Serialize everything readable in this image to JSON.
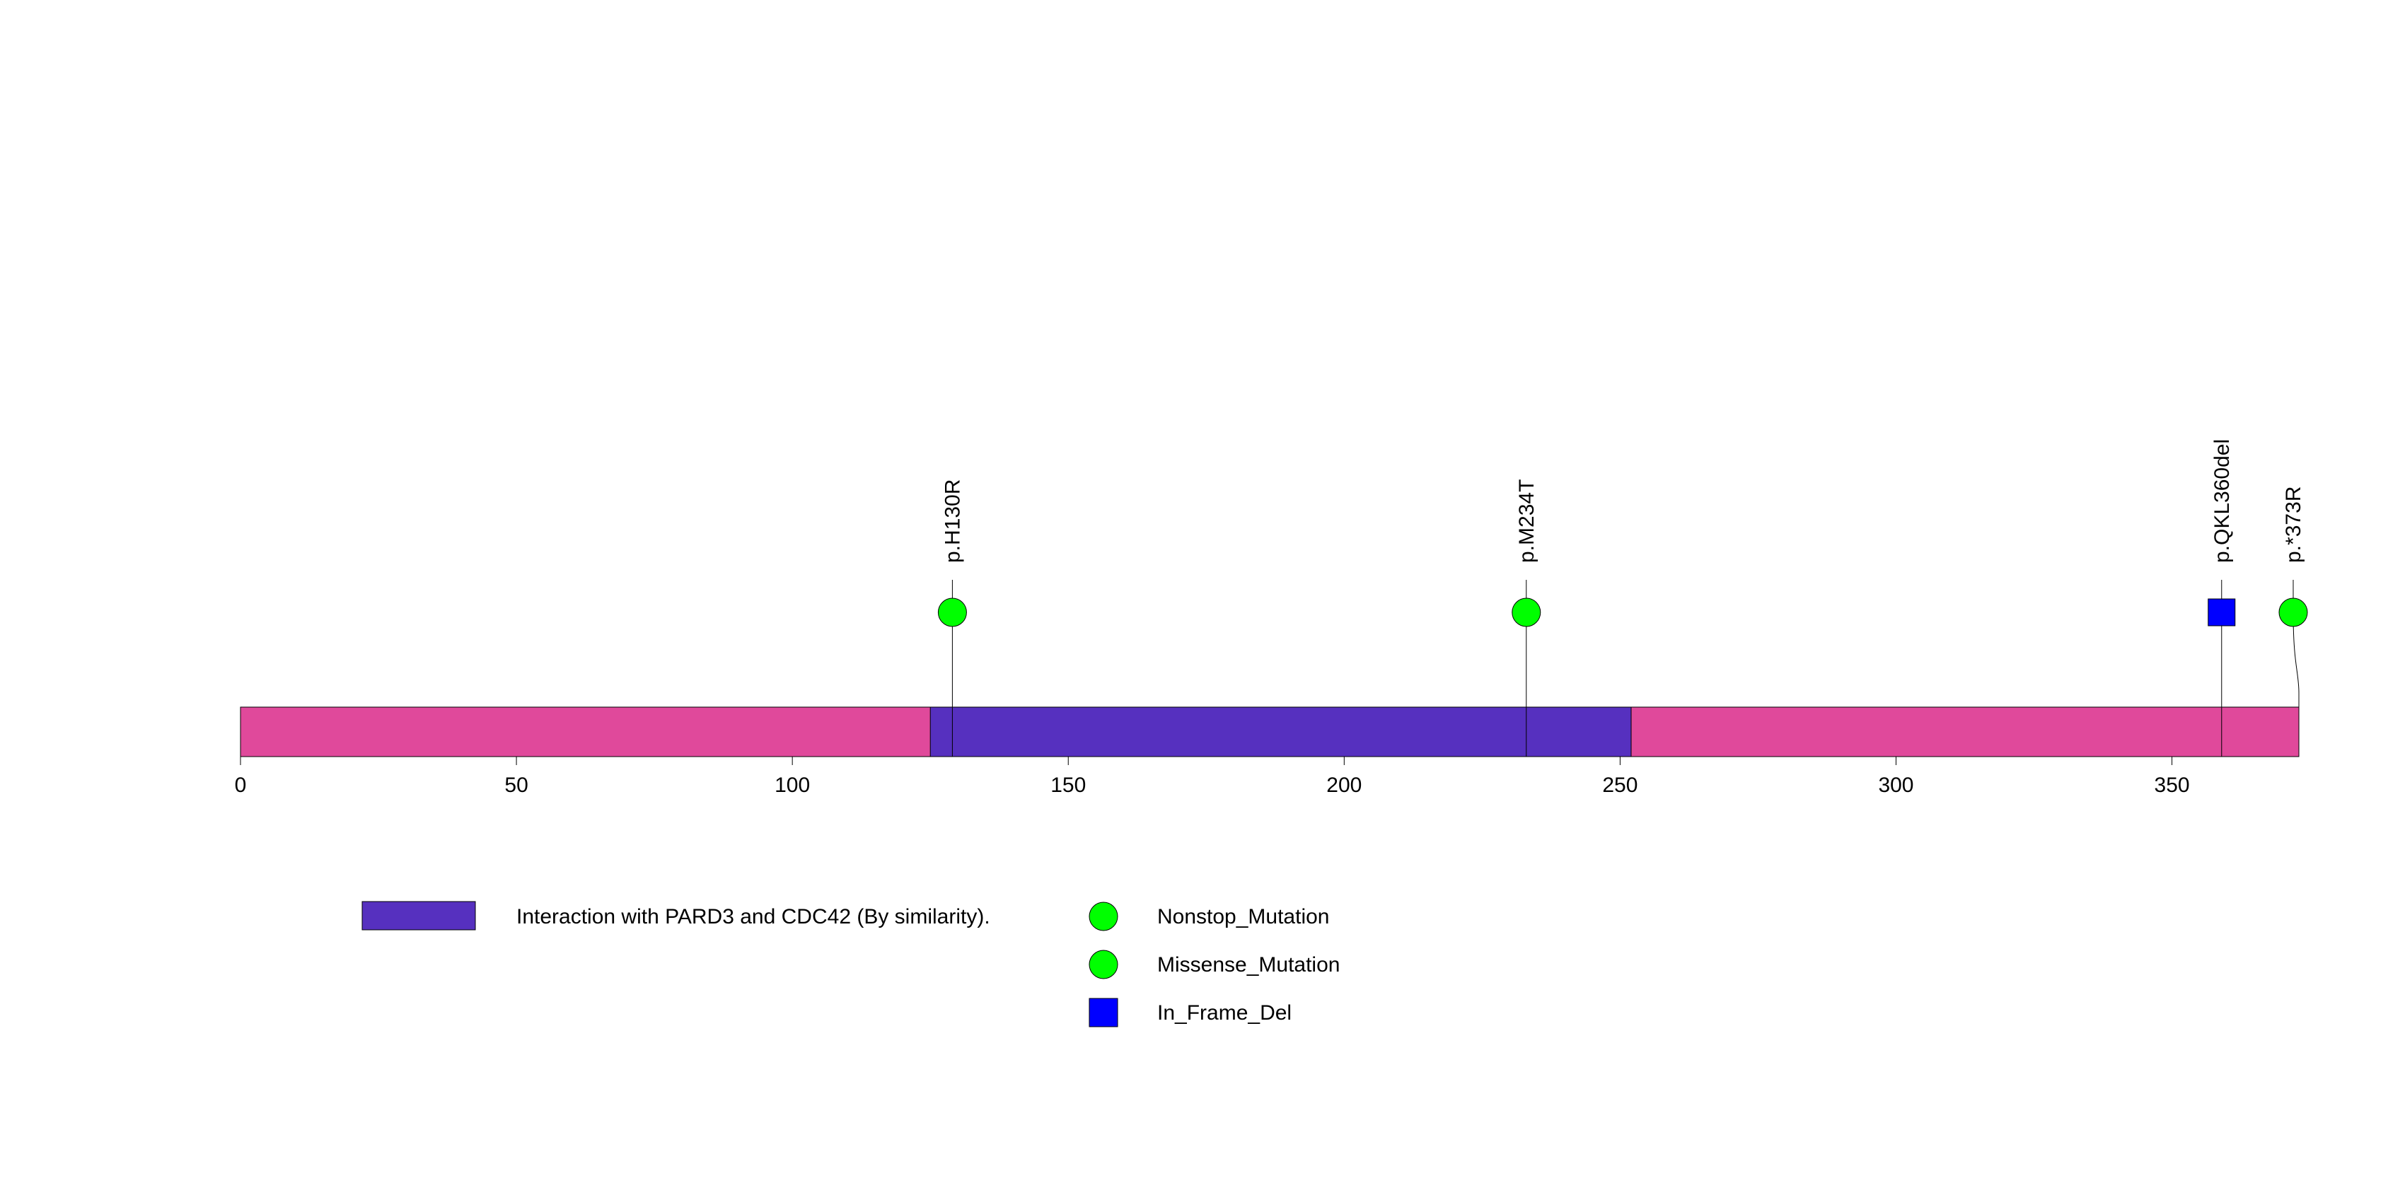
{
  "chart_data": {
    "type": "lollipop",
    "protein_length": 373,
    "xlim": [
      0,
      373
    ],
    "x_ticks": [
      0,
      50,
      100,
      150,
      200,
      250,
      300,
      350
    ],
    "x_tick_labels": [
      "0",
      "50",
      "100",
      "150",
      "200",
      "250",
      "300",
      "350"
    ],
    "backbone_color": "#E0499B",
    "domains": [
      {
        "label": "Interaction with PARD3 and CDC42 (By similarity).",
        "start": 125,
        "end": 252,
        "color": "#5630BF"
      }
    ],
    "mutations": [
      {
        "label": "p.H130R",
        "position": 129,
        "type": "Missense_Mutation",
        "shape": "circle",
        "color": "#00FF00"
      },
      {
        "label": "p.M234T",
        "position": 233,
        "type": "Missense_Mutation",
        "shape": "circle",
        "color": "#00FF00"
      },
      {
        "label": "p.QKL360del",
        "position": 359,
        "type": "In_Frame_Del",
        "shape": "square",
        "color": "#0000FF"
      },
      {
        "label": "p.*373R",
        "position": 373,
        "type": "Nonstop_Mutation",
        "shape": "circle",
        "color": "#00FF00"
      }
    ],
    "legend": {
      "placement": "bottom",
      "domain_entries": [
        {
          "label": "Interaction with PARD3 and CDC42 (By similarity).",
          "color": "#5630BF"
        }
      ],
      "mutation_entries": [
        {
          "label": "Nonstop_Mutation",
          "shape": "circle",
          "color": "#00FF00"
        },
        {
          "label": "Missense_Mutation",
          "shape": "circle",
          "color": "#00FF00"
        },
        {
          "label": "In_Frame_Del",
          "shape": "square",
          "color": "#0000FF"
        }
      ]
    }
  }
}
